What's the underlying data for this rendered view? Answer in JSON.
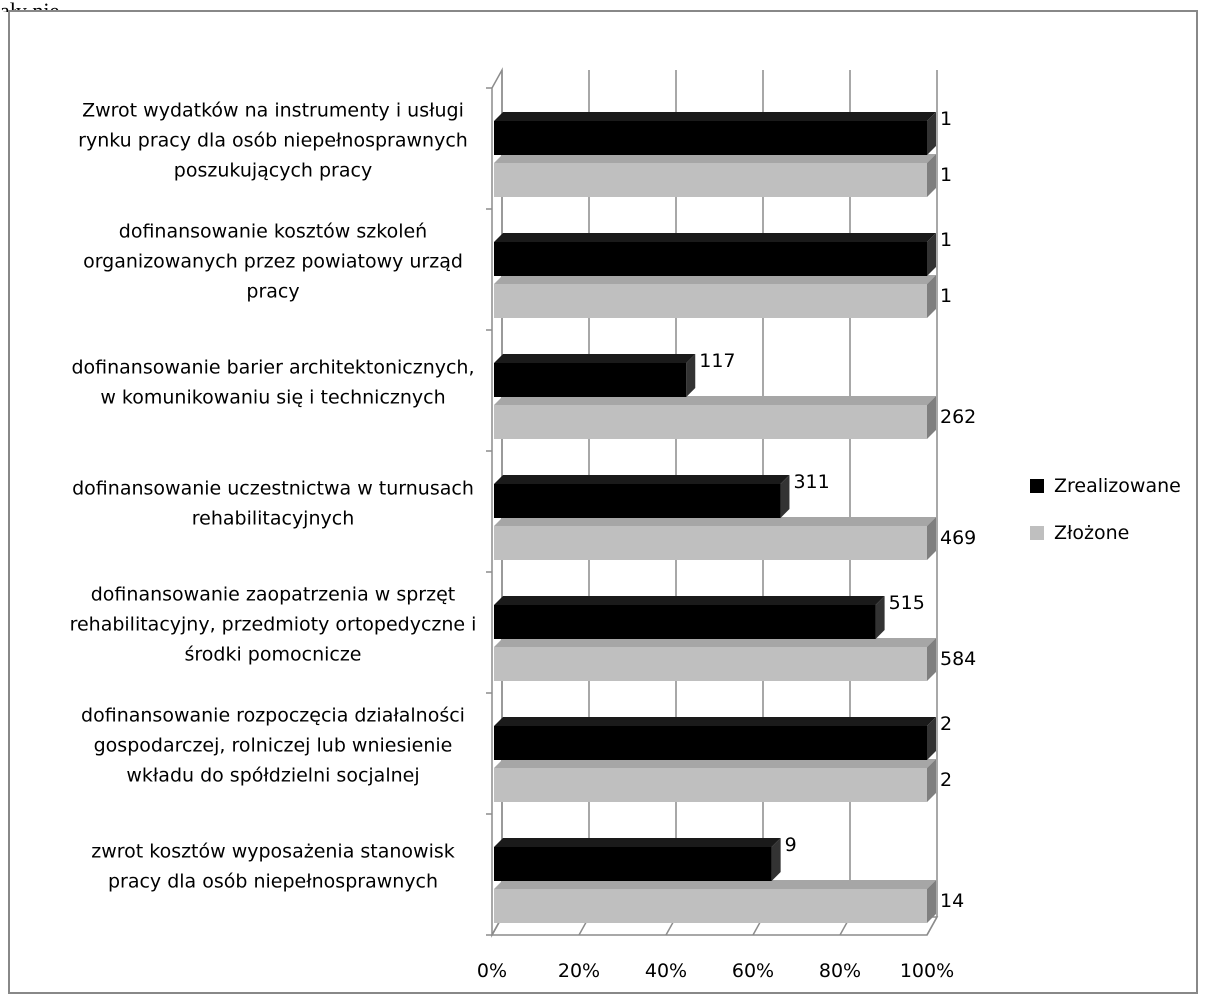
{
  "page": {
    "top_fragment": "ały nie"
  },
  "chart_data": {
    "type": "bar",
    "orientation": "horizontal",
    "stacking": "percent",
    "three_d": true,
    "categories": [
      "Zwrot wydatków na instrumenty i usługi rynku pracy dla osób niepełnosprawnych poszukujących pracy",
      "dofinansowanie kosztów szkoleń organizowanych przez powiatowy urząd pracy",
      "dofinansowanie barier architektonicznych, w komunikowaniu się i technicznych",
      "dofinansowanie uczestnictwa w turnusach rehabilitacyjnych",
      "dofinansowanie zaopatrzenia w sprzęt rehabilitacyjny, przedmioty ortopedyczne i środki pomocnicze",
      "dofinansowanie rozpoczęcia działalności gospodarczej, rolniczej lub wniesienie wkładu do spółdzielni socjalnej",
      "zwrot kosztów wyposażenia stanowisk pracy dla osób niepełnosprawnych"
    ],
    "category_lines": [
      [
        "Zwrot wydatków na instrumenty i usługi",
        "rynku pracy dla osób niepełnosprawnych",
        "poszukujących pracy"
      ],
      [
        "dofinansowanie kosztów szkoleń",
        "organizowanych przez powiatowy urząd",
        "pracy"
      ],
      [
        "dofinansowanie barier architektonicznych,",
        "w komunikowaniu się i technicznych"
      ],
      [
        "dofinansowanie uczestnictwa w turnusach",
        "rehabilitacyjnych"
      ],
      [
        "dofinansowanie zaopatrzenia w sprzęt",
        "rehabilitacyjny, przedmioty ortopedyczne i",
        "środki pomocnicze"
      ],
      [
        "dofinansowanie rozpoczęcia działalności",
        "gospodarczej, rolniczej lub wniesienie",
        "wkładu do spółdzielni socjalnej"
      ],
      [
        "zwrot kosztów wyposażenia stanowisk",
        "pracy dla osób niepełnosprawnych"
      ]
    ],
    "series": [
      {
        "name": "Zrealizowane",
        "values": [
          1,
          1,
          117,
          311,
          515,
          2,
          9
        ],
        "color": "#000000"
      },
      {
        "name": "Złożone",
        "values": [
          1,
          1,
          262,
          469,
          584,
          2,
          14
        ],
        "color": "#bfbfbf"
      }
    ],
    "value_labels": {
      "Zrealizowane": [
        "1",
        "1",
        "117",
        "311",
        "515",
        "2",
        "9"
      ],
      "Złożone": [
        "1",
        "1",
        "262",
        "469",
        "584",
        "2",
        "14"
      ]
    },
    "x_ticks": [
      "0%",
      "20%",
      "40%",
      "60%",
      "80%",
      "100%"
    ],
    "xlim": [
      0,
      100
    ],
    "grid": true,
    "legend_position": "right"
  }
}
